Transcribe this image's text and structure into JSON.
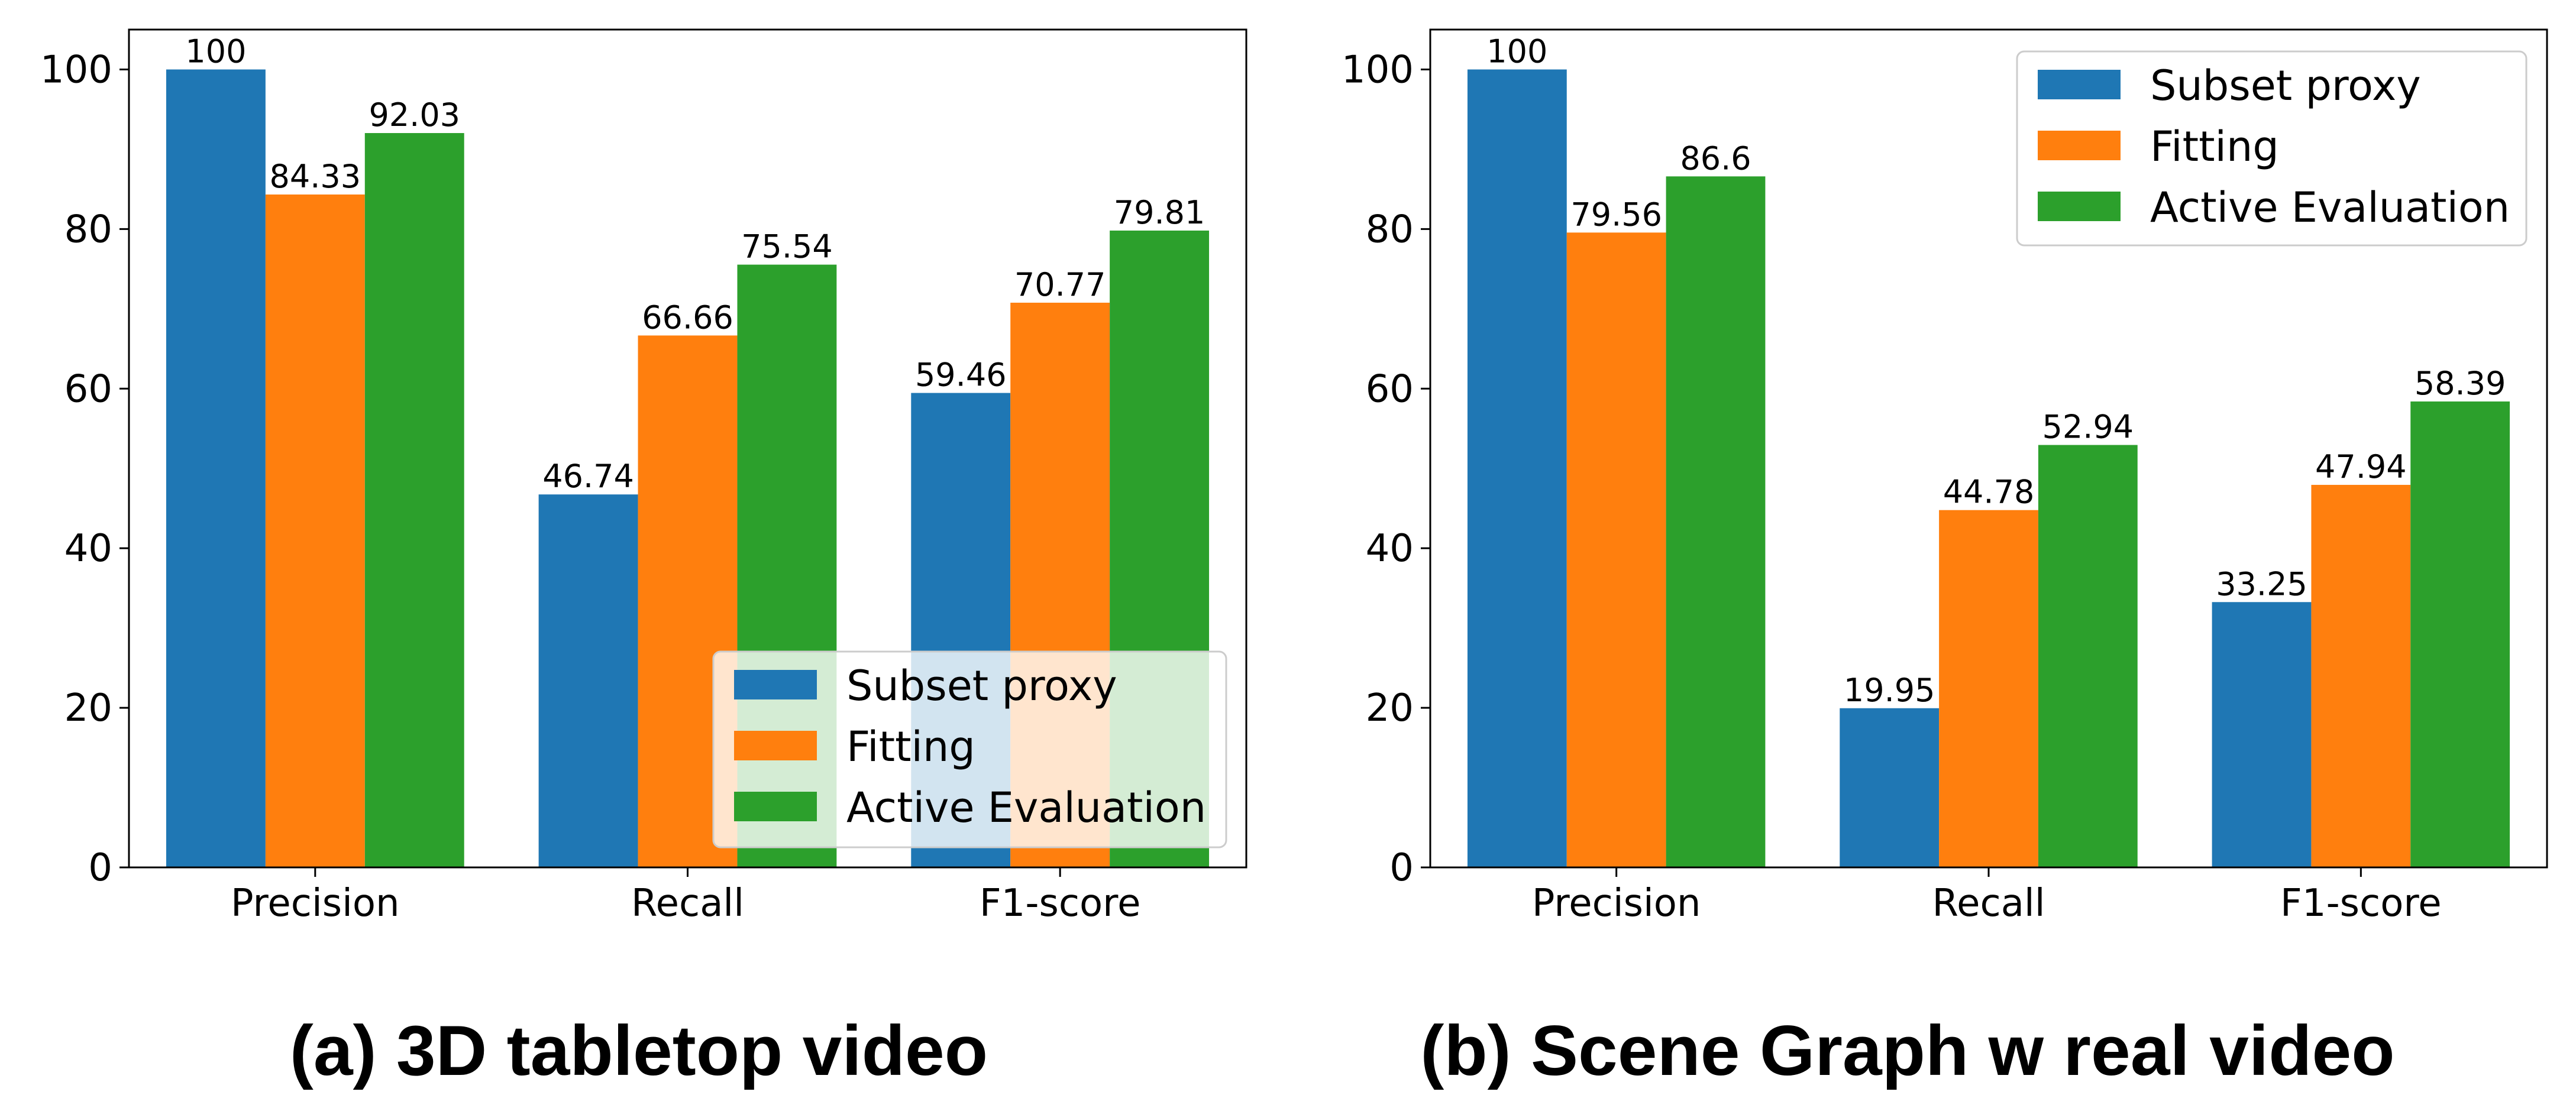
{
  "colors": {
    "series": [
      "#1f77b4",
      "#ff7f0e",
      "#2ca02c"
    ]
  },
  "chart_data": [
    {
      "type": "bar",
      "caption": "(a) 3D tabletop video",
      "categories": [
        "Precision",
        "Recall",
        "F1-score"
      ],
      "series": [
        {
          "name": "Subset proxy",
          "values": [
            100,
            46.74,
            59.46
          ]
        },
        {
          "name": "Fitting",
          "values": [
            84.33,
            66.66,
            70.77
          ]
        },
        {
          "name": "Active Evaluation",
          "values": [
            92.03,
            75.54,
            79.81
          ]
        }
      ],
      "value_labels": [
        [
          "100",
          "46.74",
          "59.46"
        ],
        [
          "84.33",
          "66.66",
          "70.77"
        ],
        [
          "92.03",
          "75.54",
          "79.81"
        ]
      ],
      "ylim": [
        0,
        105
      ],
      "yticks": [
        0,
        20,
        40,
        60,
        80,
        100
      ],
      "legend_position": "lower-right",
      "grid": false
    },
    {
      "type": "bar",
      "caption": "(b) Scene Graph w real video",
      "categories": [
        "Precision",
        "Recall",
        "F1-score"
      ],
      "series": [
        {
          "name": "Subset proxy",
          "values": [
            100,
            19.95,
            33.25
          ]
        },
        {
          "name": "Fitting",
          "values": [
            79.56,
            44.78,
            47.94
          ]
        },
        {
          "name": "Active Evaluation",
          "values": [
            86.6,
            52.94,
            58.39
          ]
        }
      ],
      "value_labels": [
        [
          "100",
          "19.95",
          "33.25"
        ],
        [
          "79.56",
          "44.78",
          "47.94"
        ],
        [
          "86.6",
          "52.94",
          "58.39"
        ]
      ],
      "ylim": [
        0,
        105
      ],
      "yticks": [
        0,
        20,
        40,
        60,
        80,
        100
      ],
      "legend_position": "upper-right",
      "grid": false
    }
  ]
}
